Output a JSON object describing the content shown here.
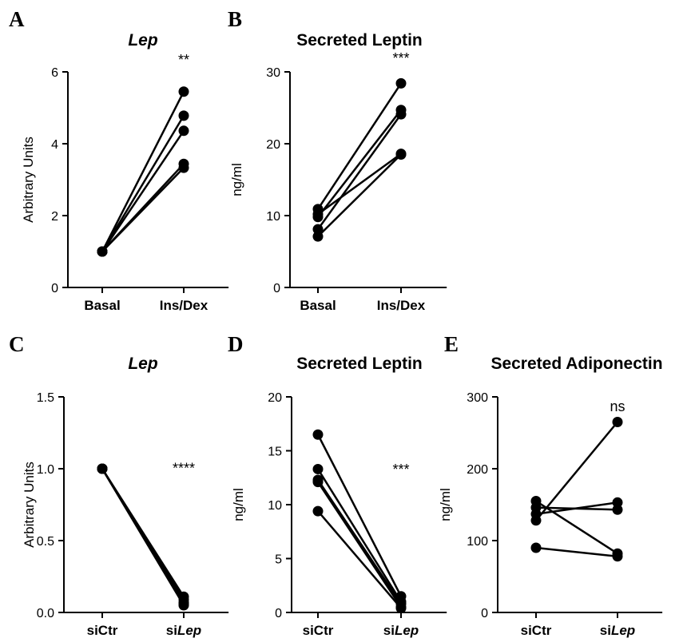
{
  "chart_data": [
    {
      "panel": "A",
      "type": "line",
      "title": "Lep",
      "title_italic": true,
      "ylabel": "Arbitrary Units",
      "categories": [
        "Basal",
        "Ins/Dex"
      ],
      "ylim": [
        0,
        6
      ],
      "yticks": [
        "0",
        "2",
        "4",
        "6"
      ],
      "yticks_values": [
        0,
        2,
        4,
        6
      ],
      "significance": "**",
      "significance_at": [
        1,
        6.2
      ],
      "series": [
        {
          "values": [
            1.0,
            5.45
          ]
        },
        {
          "values": [
            1.0,
            4.78
          ]
        },
        {
          "values": [
            1.0,
            4.36
          ]
        },
        {
          "values": [
            1.0,
            3.44
          ]
        },
        {
          "values": [
            1.0,
            3.33
          ]
        }
      ]
    },
    {
      "panel": "B",
      "type": "line",
      "title": "Secreted Leptin",
      "ylabel": "ng/ml",
      "categories": [
        "Basal",
        "Ins/Dex"
      ],
      "ylim": [
        0,
        30
      ],
      "yticks": [
        "0",
        "10",
        "20",
        "30"
      ],
      "yticks_values": [
        0,
        10,
        20,
        30
      ],
      "significance": "***",
      "significance_at": [
        1,
        31.2
      ],
      "series": [
        {
          "values": [
            10.9,
            28.4
          ]
        },
        {
          "values": [
            9.8,
            24.7
          ]
        },
        {
          "values": [
            8.1,
            24.1
          ]
        },
        {
          "values": [
            10.2,
            18.6
          ]
        },
        {
          "values": [
            7.1,
            18.5
          ]
        }
      ]
    },
    {
      "panel": "C",
      "type": "line",
      "title": "Lep",
      "title_italic": true,
      "ylabel": "Arbitrary Units",
      "categories": [
        "siCtr",
        "siLep"
      ],
      "category_parts": [
        [
          {
            "text": "siCtr",
            "italic": false
          }
        ],
        [
          {
            "text": "si",
            "italic": false
          },
          {
            "text": "Lep",
            "italic": true
          }
        ]
      ],
      "ylim": [
        0,
        1.5
      ],
      "yticks": [
        "0.0",
        "0.5",
        "1.0",
        "1.5"
      ],
      "yticks_values": [
        0,
        0.5,
        1.0,
        1.5
      ],
      "significance": "****",
      "significance_at": [
        1,
        0.97
      ],
      "series": [
        {
          "values": [
            1.0,
            0.11
          ]
        },
        {
          "values": [
            1.0,
            0.09
          ]
        },
        {
          "values": [
            1.0,
            0.07
          ]
        },
        {
          "values": [
            1.0,
            0.06
          ]
        },
        {
          "values": [
            1.0,
            0.05
          ]
        }
      ]
    },
    {
      "panel": "D",
      "type": "line",
      "title": "Secreted Leptin",
      "ylabel": "ng/ml",
      "categories": [
        "siCtr",
        "siLep"
      ],
      "category_parts": [
        [
          {
            "text": "siCtr",
            "italic": false
          }
        ],
        [
          {
            "text": "si",
            "italic": false
          },
          {
            "text": "Lep",
            "italic": true
          }
        ]
      ],
      "ylim": [
        0,
        20
      ],
      "yticks": [
        "0",
        "5",
        "10",
        "15",
        "20"
      ],
      "yticks_values": [
        0,
        5,
        10,
        15,
        20
      ],
      "significance": "***",
      "significance_at": [
        1,
        12.8
      ],
      "series": [
        {
          "values": [
            16.5,
            1.5
          ]
        },
        {
          "values": [
            13.3,
            1.0
          ]
        },
        {
          "values": [
            12.3,
            0.8
          ]
        },
        {
          "values": [
            12.1,
            0.5
          ]
        },
        {
          "values": [
            9.4,
            0.4
          ]
        }
      ]
    },
    {
      "panel": "E",
      "type": "line",
      "title": "Secreted Adiponectin",
      "ylabel": "ng/ml",
      "categories": [
        "siCtr",
        "siLep"
      ],
      "category_parts": [
        [
          {
            "text": "siCtr",
            "italic": false
          }
        ],
        [
          {
            "text": "si",
            "italic": false
          },
          {
            "text": "Lep",
            "italic": true
          }
        ]
      ],
      "ylim": [
        0,
        300
      ],
      "yticks": [
        "0",
        "100",
        "200",
        "300"
      ],
      "yticks_values": [
        0,
        100,
        200,
        300
      ],
      "significance": "ns",
      "significance_at": [
        1,
        280
      ],
      "series": [
        {
          "values": [
            128,
            265
          ]
        },
        {
          "values": [
            137,
            153
          ]
        },
        {
          "values": [
            146,
            143
          ]
        },
        {
          "values": [
            155,
            82
          ]
        },
        {
          "values": [
            90,
            78
          ]
        }
      ]
    }
  ]
}
